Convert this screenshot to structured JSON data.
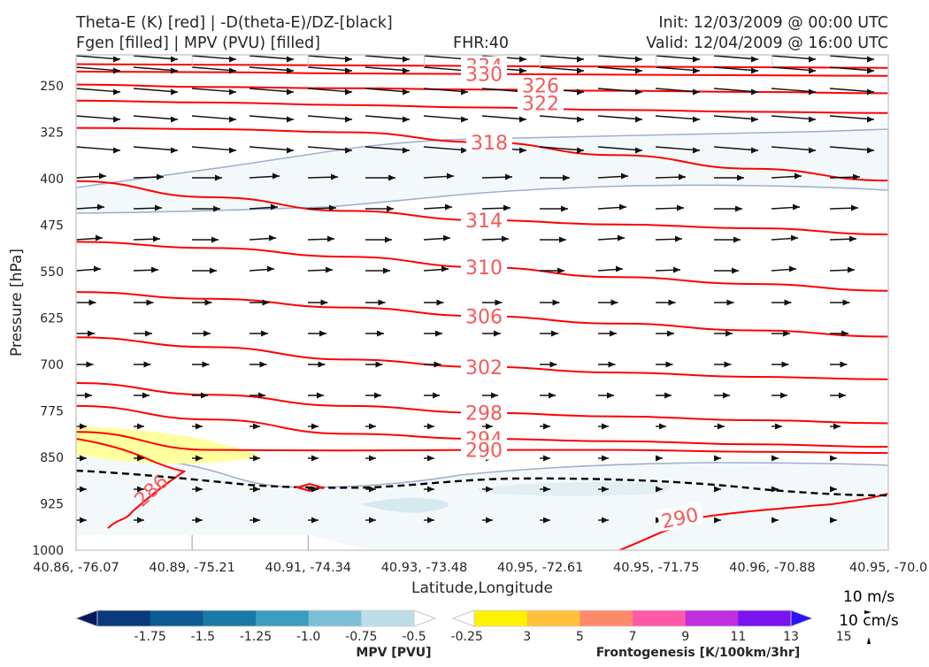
{
  "header": {
    "title_line1": "Theta-E (K) [red] | -D(theta-E)/DZ-[black]",
    "title_line2": "Fgen [filled] | MPV (PVU) [filled]",
    "fhr": "FHR:40",
    "init": "Init: 12/03/2009 @ 00:00 UTC",
    "valid": "Valid: 12/04/2009 @ 16:00 UTC"
  },
  "chart_data": {
    "type": "cross-section",
    "xlabel": "Latitude,Longitude",
    "ylabel": "Pressure [hPa]",
    "x_ticks": [
      "40.86, -76.07",
      "40.89, -75.21",
      "40.91, -74.34",
      "40.93, -73.48",
      "40.95, -72.61",
      "40.95, -71.75",
      "40.96, -70.88",
      "40.95, -70.0"
    ],
    "y_ticks": [
      250,
      325,
      400,
      475,
      550,
      625,
      700,
      775,
      850,
      925,
      1000
    ],
    "y_range": [
      200,
      1000
    ],
    "y_axis_inverted": true,
    "theta_e_contours": [
      {
        "value": 334,
        "label": "334",
        "pressure": [
          215,
          216,
          217,
          218,
          219,
          220,
          221
        ]
      },
      {
        "value": 330,
        "label": "330",
        "pressure": [
          227,
          228,
          230,
          231,
          232,
          233,
          234
        ]
      },
      {
        "value": 326,
        "label": "326",
        "pressure": [
          248,
          252,
          254,
          256,
          258,
          260,
          262
        ]
      },
      {
        "value": 322,
        "label": "322",
        "pressure": [
          274,
          277,
          281,
          285,
          289,
          292,
          294
        ]
      },
      {
        "value": 318,
        "label": "318",
        "pressure": [
          318,
          320,
          325,
          341,
          362,
          384,
          403
        ]
      },
      {
        "value": 314,
        "label": "314",
        "pressure": [
          404,
          430,
          452,
          467,
          474,
          480,
          490
        ]
      },
      {
        "value": 310,
        "label": "310",
        "pressure": [
          502,
          512,
          526,
          543,
          559,
          570,
          581
        ]
      },
      {
        "value": 306,
        "label": "306",
        "pressure": [
          583,
          594,
          608,
          622,
          634,
          645,
          655
        ]
      },
      {
        "value": 302,
        "label": "302",
        "pressure": [
          656,
          672,
          692,
          704,
          713,
          720,
          724
        ]
      },
      {
        "value": 298,
        "label": "298",
        "pressure": [
          730,
          749,
          767,
          778,
          784,
          790,
          795
        ]
      },
      {
        "value": 294,
        "label": "294",
        "pressure": [
          767,
          789,
          812,
          820,
          824,
          829,
          833
        ]
      },
      {
        "value": 290,
        "label": "290",
        "pressure": [
          809,
          838,
          839,
          838,
          838,
          841,
          843
        ]
      }
    ],
    "theta_e_low_label": "286",
    "theta_e_surface_label": "290",
    "mpv_colorbar": {
      "label": "MPV [PVU]",
      "ticks": [
        "-1.75",
        "-1.5",
        "-1.25",
        "-1.0",
        "-0.75",
        "-0.5",
        "-0.25"
      ],
      "colors": [
        "#061a5c",
        "#0a3a7c",
        "#0e5a95",
        "#1a7aa5",
        "#3a9cc0",
        "#7cbfd5",
        "#bcdde8",
        "#ffffff"
      ]
    },
    "fgen_colorbar": {
      "label": "Frontogenesis [K/100km/3hr]",
      "ticks": [
        "3",
        "5",
        "7",
        "9",
        "11",
        "13",
        "15"
      ],
      "colors": [
        "#ffffff",
        "#fff200",
        "#ffc23a",
        "#ff8a6a",
        "#ff59a8",
        "#c02ee0",
        "#7a14f0",
        "#2a14f5"
      ]
    },
    "wind_reference": {
      "speed": "10 m/s",
      "vertical": "10 cm/s"
    }
  }
}
